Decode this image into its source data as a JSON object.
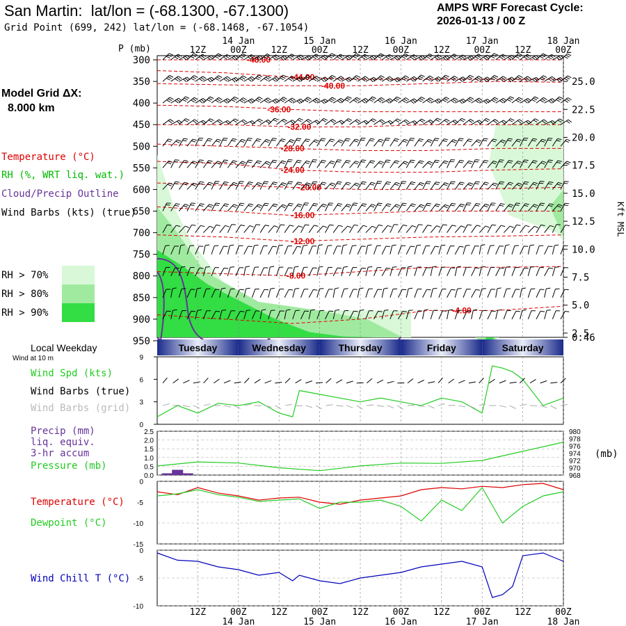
{
  "header": {
    "site": "San Martin:",
    "latlon": "lat/lon = (-68.1300, -67.1300)",
    "grid_point": "Grid Point (699, 242) lat/lon = (-68.1468, -67.1054)",
    "forecast_title": "AMPS WRF Forecast Cycle:",
    "cycle": "2026-01-13 / 00  Z",
    "model_grid_label": "Model Grid ΔX:",
    "model_grid_value": "8.000 km"
  },
  "colors": {
    "temperature": "#dd0000",
    "rh": "#00bb00",
    "rh70": "#d8f8d8",
    "rh80": "#a0eaa0",
    "rh90": "#33dd44",
    "cloud": "#663399",
    "wind_speed": "#22cc22",
    "wind_grid": "#aaaaaa",
    "precip": "#663399",
    "pressure": "#22cc22",
    "dewpoint": "#22cc22",
    "windchill": "#0000bb",
    "weekday_dark": "#1a2a8a",
    "weekday_light": "#e8ecf8"
  },
  "time_axis": {
    "top_hour_labels": [
      "12Z",
      "00Z",
      "12Z",
      "00Z",
      "12Z",
      "00Z",
      "12Z",
      "00Z",
      "12Z",
      "00Z"
    ],
    "top_date_labels": [
      "14 Jan",
      "15 Jan",
      "16 Jan",
      "17 Jan",
      "18 Jan"
    ],
    "bottom_hour_labels": [
      "12Z",
      "00Z",
      "12Z",
      "00Z",
      "12Z",
      "00Z",
      "12Z",
      "00Z",
      "12Z",
      "00Z"
    ],
    "bottom_date_labels": [
      "14 Jan",
      "15 Jan",
      "16 Jan",
      "17 Jan",
      "18 Jan"
    ]
  },
  "legend": {
    "temperature": "Temperature (°C)",
    "rh": "RH (%, WRT liq. wat.)",
    "cloud": "Cloud/Precip Outline",
    "wind": "Wind Barbs (kts) (true)",
    "rh70": "RH > 70%",
    "rh80": "RH > 80%",
    "rh90": "RH > 90%"
  },
  "weekdays": {
    "title": "Local Weekday",
    "wind_note": "Wind at 10 m",
    "days": [
      "Tuesday",
      "Wednesday",
      "Thursday",
      "Friday",
      "Saturday"
    ]
  },
  "panel_labels": {
    "wind_spd": "Wind Spd (kts)",
    "wind_barbs_true": "Wind Barbs (true)",
    "wind_barbs_grid": "Wind Barbs (grid)",
    "precip1": "Precip (mm)",
    "precip2": "liq. equiv.",
    "precip3": "3-hr accum",
    "pressure": "Pressure (mb)",
    "pressure_unit": "(mb)",
    "temperature": "Temperature (°C)",
    "dewpoint": "Dewpoint (°C)",
    "windchill": "Wind Chill T (°C)"
  },
  "chart_data": [
    {
      "type": "line",
      "kind": "time-height cross section",
      "yaxis_title": "P (mb)",
      "pressure_levels": [
        "300",
        "350",
        "400",
        "450",
        "500",
        "550",
        "600",
        "650",
        "700",
        "750",
        "800",
        "850",
        "900",
        "950"
      ],
      "right_axis_title": "Kft MSL",
      "height_labels": [
        "25.0",
        "22.5",
        "20.0",
        "17.5",
        "15.0",
        "12.5",
        "10.0",
        "7.5",
        "5.0",
        "2.5",
        "0.46"
      ],
      "height_kft": [
        25.0,
        22.5,
        20.0,
        17.5,
        15.0,
        12.5,
        10.0,
        7.5,
        5.0,
        2.5,
        0.46
      ],
      "x_range_hours": [
        0,
        120
      ],
      "temperature_contours": [
        {
          "label": "-48.00",
          "pressure": [
            300,
            300,
            300,
            300,
            300,
            300,
            300
          ],
          "hours": [
            0,
            20,
            40,
            60,
            80,
            100,
            120
          ]
        },
        {
          "label": "-44.00",
          "pressure": [
            325,
            330,
            340,
            345,
            345,
            345,
            345
          ],
          "hours": [
            0,
            20,
            40,
            60,
            80,
            100,
            120
          ]
        },
        {
          "label": "-40.00",
          "pressure": [
            355,
            358,
            360,
            360,
            355,
            350,
            352
          ],
          "hours": [
            0,
            20,
            40,
            60,
            80,
            100,
            120
          ]
        },
        {
          "label": "-36.00",
          "pressure": [
            405,
            408,
            415,
            420,
            420,
            420,
            420
          ],
          "hours": [
            0,
            20,
            40,
            60,
            80,
            100,
            120
          ]
        },
        {
          "label": "-32.00",
          "pressure": [
            450,
            450,
            455,
            455,
            450,
            450,
            450
          ],
          "hours": [
            0,
            20,
            40,
            60,
            80,
            100,
            120
          ]
        },
        {
          "label": "-28.00",
          "pressure": [
            495,
            500,
            505,
            510,
            510,
            505,
            505
          ],
          "hours": [
            0,
            20,
            40,
            60,
            80,
            100,
            120
          ]
        },
        {
          "label": "-24.00",
          "pressure": [
            535,
            540,
            555,
            560,
            560,
            555,
            552
          ],
          "hours": [
            0,
            20,
            40,
            60,
            80,
            100,
            120
          ]
        },
        {
          "label": "-20.00",
          "pressure": [
            585,
            590,
            595,
            600,
            600,
            598,
            595
          ],
          "hours": [
            0,
            20,
            40,
            60,
            80,
            100,
            120
          ]
        },
        {
          "label": "-16.00",
          "pressure": [
            640,
            650,
            660,
            655,
            650,
            650,
            650
          ],
          "hours": [
            0,
            20,
            40,
            60,
            80,
            100,
            120
          ]
        },
        {
          "label": "-12.00",
          "pressure": [
            705,
            710,
            720,
            715,
            710,
            708,
            705
          ],
          "hours": [
            0,
            20,
            40,
            60,
            80,
            100,
            120
          ]
        },
        {
          "label": "-8.00",
          "pressure": [
            790,
            795,
            800,
            790,
            780,
            780,
            778
          ],
          "hours": [
            0,
            20,
            40,
            60,
            80,
            100,
            120
          ]
        },
        {
          "label": "-4.00",
          "pressure": [
            890,
            900,
            910,
            900,
            880,
            880,
            870
          ],
          "hours": [
            0,
            20,
            40,
            60,
            80,
            100,
            120
          ]
        }
      ],
      "rh_regions": [
        {
          "threshold": 70,
          "pressure": [
            520,
            640,
            720,
            820,
            870,
            880,
            880,
            880,
            880
          ],
          "hours": [
            0,
            5,
            10,
            20,
            30,
            40,
            55,
            65,
            75
          ]
        },
        {
          "threshold": 90,
          "pressure": [
            740,
            780,
            820,
            860,
            900,
            930,
            940,
            950,
            960
          ],
          "hours": [
            0,
            8,
            15,
            25,
            35,
            45,
            55,
            65,
            75
          ]
        }
      ],
      "barb_rows": 14,
      "barb_cols": 50
    },
    {
      "type": "line",
      "series": [
        {
          "name": "Wind Spd (kts)",
          "hours": [
            0,
            6,
            12,
            18,
            24,
            30,
            36,
            40,
            42,
            48,
            54,
            60,
            66,
            72,
            78,
            84,
            90,
            96,
            99,
            102,
            105,
            108,
            114,
            120
          ],
          "values": [
            1.0,
            2.5,
            1.5,
            2.8,
            2.5,
            3.0,
            1.5,
            1.0,
            4.5,
            4.0,
            3.5,
            3.0,
            3.5,
            3.0,
            2.5,
            3.5,
            3.0,
            1.5,
            7.8,
            7.5,
            7.0,
            6.0,
            2.5,
            3.5
          ]
        }
      ],
      "ylim": [
        0,
        9
      ],
      "yticks": [
        "0",
        "3",
        "6",
        "9"
      ]
    },
    {
      "type": "bar",
      "series": [
        {
          "name": "Precip (mm)",
          "hours": [
            3,
            6,
            9,
            12
          ],
          "values": [
            0.1,
            0.3,
            0.1,
            0.0
          ]
        },
        {
          "name": "Pressure (mb)",
          "hours": [
            0,
            12,
            24,
            36,
            48,
            60,
            72,
            84,
            96,
            108,
            120
          ],
          "values": [
            970.5,
            971.6,
            971.3,
            970.0,
            969.2,
            970.5,
            971.3,
            971.2,
            972.0,
            974.5,
            977.0
          ]
        }
      ],
      "left_ticks": [
        "0.0",
        "0.5",
        "1.0",
        "1.5",
        "2.0",
        "2.5"
      ],
      "right_ticks": [
        "968",
        "970",
        "972",
        "974",
        "976",
        "978",
        "980"
      ]
    },
    {
      "type": "line",
      "series": [
        {
          "name": "Temperature (°C)",
          "hours": [
            0,
            6,
            12,
            18,
            24,
            30,
            36,
            42,
            48,
            54,
            60,
            66,
            72,
            78,
            84,
            90,
            96,
            102,
            108,
            114,
            120
          ],
          "values": [
            -2.5,
            -3.2,
            -1.5,
            -2.8,
            -3.5,
            -4.5,
            -4.0,
            -3.8,
            -5.0,
            -5.5,
            -4.5,
            -4.0,
            -3.5,
            -2.0,
            -1.5,
            -1.8,
            -1.2,
            -1.5,
            -0.8,
            -0.5,
            -2.0
          ]
        },
        {
          "name": "Dewpoint (°C)",
          "hours": [
            0,
            6,
            12,
            18,
            24,
            30,
            36,
            42,
            48,
            54,
            60,
            66,
            72,
            78,
            84,
            90,
            96,
            102,
            108,
            114,
            120
          ],
          "values": [
            -3.5,
            -3.0,
            -2.0,
            -3.2,
            -3.8,
            -4.8,
            -4.5,
            -4.2,
            -6.5,
            -5.0,
            -5.0,
            -4.5,
            -6.0,
            -9.5,
            -4.5,
            -7.0,
            -1.5,
            -10.0,
            -6.0,
            -3.5,
            -2.5
          ]
        }
      ],
      "ylim": [
        -15,
        0
      ],
      "yticks": [
        "0",
        "-5",
        "-10",
        "-15"
      ]
    },
    {
      "type": "line",
      "series": [
        {
          "name": "Wind Chill T (°C)",
          "hours": [
            0,
            6,
            12,
            18,
            24,
            30,
            36,
            40,
            42,
            48,
            54,
            60,
            66,
            72,
            78,
            84,
            90,
            96,
            99,
            102,
            105,
            108,
            114,
            120
          ],
          "values": [
            -0.5,
            -1.8,
            -2.0,
            -3.0,
            -3.5,
            -4.5,
            -4.0,
            -5.5,
            -4.5,
            -5.5,
            -6.0,
            -5.0,
            -4.5,
            -4.0,
            -3.0,
            -2.5,
            -2.0,
            -3.0,
            -8.5,
            -8.0,
            -6.5,
            -1.0,
            -0.5,
            -2.0
          ]
        }
      ],
      "ylim": [
        -10,
        0
      ],
      "yticks": [
        "0",
        "-5",
        "-10"
      ]
    }
  ]
}
